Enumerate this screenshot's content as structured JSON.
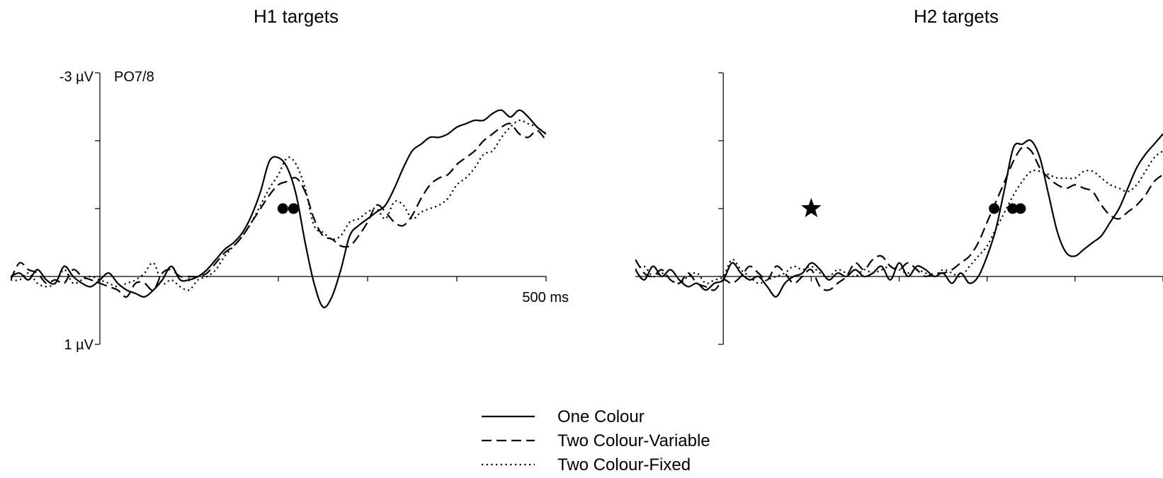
{
  "chart_data": [
    {
      "type": "line",
      "title": "H1 targets",
      "channel_label": "PO7/8",
      "y_top_label": "-3 µV",
      "y_bottom_label": "1 µV",
      "x_end_label": "500 ms",
      "xlim": [
        -100,
        500
      ],
      "ylim": [
        1,
        -3
      ],
      "y_inverted": true,
      "x_ticks": [
        0,
        100,
        200,
        300,
        400,
        500
      ],
      "y_ticks": [
        -3,
        -2,
        -1,
        0,
        1
      ],
      "grid": false,
      "onset_markers": [
        {
          "series": "One Colour",
          "x": 205,
          "y": -1
        },
        {
          "series": "Two Colour-Variable",
          "x": 217,
          "y": -1
        },
        {
          "series": "Two Colour-Fixed",
          "x": 217,
          "y": -1
        }
      ],
      "x": [
        -100,
        -90,
        -80,
        -70,
        -60,
        -50,
        -40,
        -30,
        -20,
        -10,
        0,
        10,
        20,
        30,
        40,
        50,
        60,
        70,
        80,
        90,
        100,
        110,
        120,
        130,
        140,
        150,
        160,
        170,
        180,
        190,
        200,
        210,
        220,
        230,
        240,
        250,
        260,
        270,
        280,
        290,
        300,
        310,
        320,
        330,
        340,
        350,
        360,
        370,
        380,
        390,
        400,
        410,
        420,
        430,
        440,
        450,
        460,
        470,
        480,
        490,
        500
      ],
      "series": [
        {
          "name": "One Colour",
          "style": "solid",
          "values": [
            0.0,
            -0.05,
            0.05,
            -0.1,
            0.05,
            0.1,
            -0.15,
            0.0,
            0.1,
            0.15,
            0.05,
            -0.05,
            0.1,
            0.2,
            0.25,
            0.3,
            0.2,
            0.05,
            -0.15,
            0.05,
            0.05,
            0.0,
            -0.1,
            -0.25,
            -0.4,
            -0.5,
            -0.65,
            -0.9,
            -1.25,
            -1.7,
            -1.75,
            -1.6,
            -1.2,
            -0.5,
            0.1,
            0.45,
            0.3,
            -0.1,
            -0.6,
            -0.75,
            -0.85,
            -0.95,
            -1.05,
            -1.3,
            -1.6,
            -1.85,
            -1.95,
            -2.05,
            -2.05,
            -2.1,
            -2.2,
            -2.25,
            -2.3,
            -2.3,
            -2.4,
            -2.45,
            -2.35,
            -2.45,
            -2.35,
            -2.2,
            -2.1
          ]
        },
        {
          "name": "Two Colour-Variable",
          "style": "dashed",
          "values": [
            0.05,
            -0.2,
            -0.1,
            -0.05,
            0.1,
            0.05,
            0.1,
            -0.1,
            0.0,
            0.05,
            0.1,
            0.15,
            0.2,
            0.3,
            0.1,
            0.1,
            0.2,
            -0.05,
            -0.1,
            0.0,
            0.0,
            0.0,
            -0.05,
            -0.2,
            -0.35,
            -0.45,
            -0.6,
            -0.8,
            -1.0,
            -1.2,
            -1.35,
            -1.4,
            -1.45,
            -1.25,
            -0.85,
            -0.6,
            -0.55,
            -0.45,
            -0.45,
            -0.6,
            -0.8,
            -1.05,
            -0.95,
            -0.8,
            -0.75,
            -0.9,
            -1.15,
            -1.35,
            -1.45,
            -1.5,
            -1.65,
            -1.75,
            -1.85,
            -2.0,
            -2.1,
            -2.2,
            -2.25,
            -2.1,
            -2.05,
            -2.15,
            -2.0
          ]
        },
        {
          "name": "Two Colour-Fixed",
          "style": "dotted",
          "values": [
            0.05,
            0.05,
            -0.05,
            0.1,
            0.15,
            0.1,
            -0.1,
            0.1,
            0.05,
            0.0,
            0.05,
            0.1,
            0.15,
            0.1,
            0.05,
            -0.05,
            -0.2,
            0.1,
            0.05,
            0.15,
            0.2,
            0.05,
            0.0,
            -0.1,
            -0.3,
            -0.45,
            -0.6,
            -0.8,
            -1.05,
            -1.3,
            -1.5,
            -1.75,
            -1.65,
            -1.3,
            -0.75,
            -0.65,
            -0.55,
            -0.6,
            -0.8,
            -0.85,
            -0.95,
            -1.0,
            -0.85,
            -1.1,
            -1.05,
            -0.85,
            -0.95,
            -1.0,
            -1.05,
            -1.15,
            -1.35,
            -1.45,
            -1.6,
            -1.8,
            -1.85,
            -2.05,
            -2.2,
            -2.3,
            -2.25,
            -2.2,
            -2.1
          ]
        }
      ]
    },
    {
      "type": "line",
      "title": "H2 targets",
      "xlim": [
        -100,
        500
      ],
      "ylim": [
        1,
        -3
      ],
      "y_inverted": true,
      "x_ticks": [
        0,
        100,
        200,
        300,
        400,
        500
      ],
      "y_ticks": [
        -3,
        -2,
        -1,
        0,
        1
      ],
      "grid": false,
      "star_marker": {
        "x": 100,
        "y": -1
      },
      "onset_markers": [
        {
          "series": "One Colour",
          "x": 308,
          "y": -1
        },
        {
          "series": "Two Colour-Variable",
          "x": 329,
          "y": -1
        },
        {
          "series": "Two Colour-Fixed",
          "x": 338,
          "y": -1
        }
      ],
      "x": [
        -100,
        -90,
        -80,
        -70,
        -60,
        -50,
        -40,
        -30,
        -20,
        -10,
        0,
        10,
        20,
        30,
        40,
        50,
        60,
        70,
        80,
        90,
        100,
        110,
        120,
        130,
        140,
        150,
        160,
        170,
        180,
        190,
        200,
        210,
        220,
        230,
        240,
        250,
        260,
        270,
        280,
        290,
        300,
        310,
        320,
        330,
        340,
        350,
        360,
        370,
        380,
        390,
        400,
        410,
        420,
        430,
        440,
        450,
        460,
        470,
        480,
        490,
        500
      ],
      "series": [
        {
          "name": "One Colour",
          "style": "solid",
          "values": [
            -0.1,
            0.05,
            -0.15,
            0.0,
            -0.1,
            0.05,
            0.15,
            0.1,
            0.2,
            0.1,
            0.05,
            -0.2,
            -0.05,
            0.05,
            0.0,
            0.15,
            0.3,
            0.1,
            0.0,
            -0.05,
            -0.2,
            -0.1,
            0.05,
            -0.05,
            0.0,
            -0.1,
            0.0,
            -0.05,
            -0.15,
            0.05,
            -0.2,
            0.0,
            -0.15,
            -0.1,
            0.0,
            -0.05,
            0.1,
            -0.05,
            0.1,
            0.0,
            -0.3,
            -0.7,
            -1.3,
            -1.9,
            -1.95,
            -2.0,
            -1.75,
            -1.2,
            -0.65,
            -0.35,
            -0.3,
            -0.4,
            -0.5,
            -0.6,
            -0.8,
            -1.0,
            -1.3,
            -1.6,
            -1.8,
            -1.95,
            -2.1
          ]
        },
        {
          "name": "Two Colour-Variable",
          "style": "dashed",
          "values": [
            -0.25,
            -0.05,
            0.0,
            -0.1,
            0.05,
            0.1,
            -0.05,
            0.1,
            0.15,
            0.2,
            0.05,
            0.1,
            0.0,
            -0.15,
            -0.05,
            0.05,
            -0.15,
            -0.05,
            0.1,
            0.0,
            -0.1,
            0.15,
            0.2,
            0.1,
            0.0,
            -0.2,
            -0.1,
            -0.25,
            -0.3,
            -0.15,
            -0.1,
            -0.2,
            -0.1,
            0.0,
            -0.05,
            -0.05,
            -0.1,
            -0.2,
            -0.3,
            -0.5,
            -0.8,
            -1.1,
            -1.4,
            -1.7,
            -1.9,
            -1.85,
            -1.6,
            -1.45,
            -1.35,
            -1.3,
            -1.35,
            -1.3,
            -1.25,
            -1.05,
            -0.9,
            -0.85,
            -0.95,
            -1.05,
            -1.2,
            -1.4,
            -1.5
          ]
        },
        {
          "name": "Two Colour-Fixed",
          "style": "dotted",
          "values": [
            -0.1,
            -0.15,
            0.0,
            -0.05,
            0.05,
            0.1,
            0.0,
            -0.05,
            0.1,
            0.05,
            0.0,
            -0.25,
            -0.1,
            0.0,
            0.1,
            0.05,
            0.0,
            -0.05,
            -0.15,
            -0.1,
            -0.15,
            -0.05,
            0.0,
            -0.1,
            -0.05,
            0.0,
            -0.1,
            -0.05,
            -0.1,
            -0.15,
            -0.1,
            -0.05,
            -0.1,
            -0.05,
            0.0,
            -0.1,
            -0.05,
            0.0,
            -0.15,
            -0.3,
            -0.45,
            -0.7,
            -0.95,
            -1.2,
            -1.4,
            -1.55,
            -1.55,
            -1.5,
            -1.45,
            -1.45,
            -1.45,
            -1.55,
            -1.55,
            -1.45,
            -1.35,
            -1.3,
            -1.25,
            -1.35,
            -1.55,
            -1.75,
            -1.85
          ]
        }
      ]
    }
  ],
  "legend": {
    "placement": "bottom-center",
    "entries": [
      {
        "label": "One Colour",
        "style": "solid"
      },
      {
        "label": "Two Colour-Variable",
        "style": "dashed"
      },
      {
        "label": "Two Colour-Fixed",
        "style": "dotted"
      }
    ]
  }
}
